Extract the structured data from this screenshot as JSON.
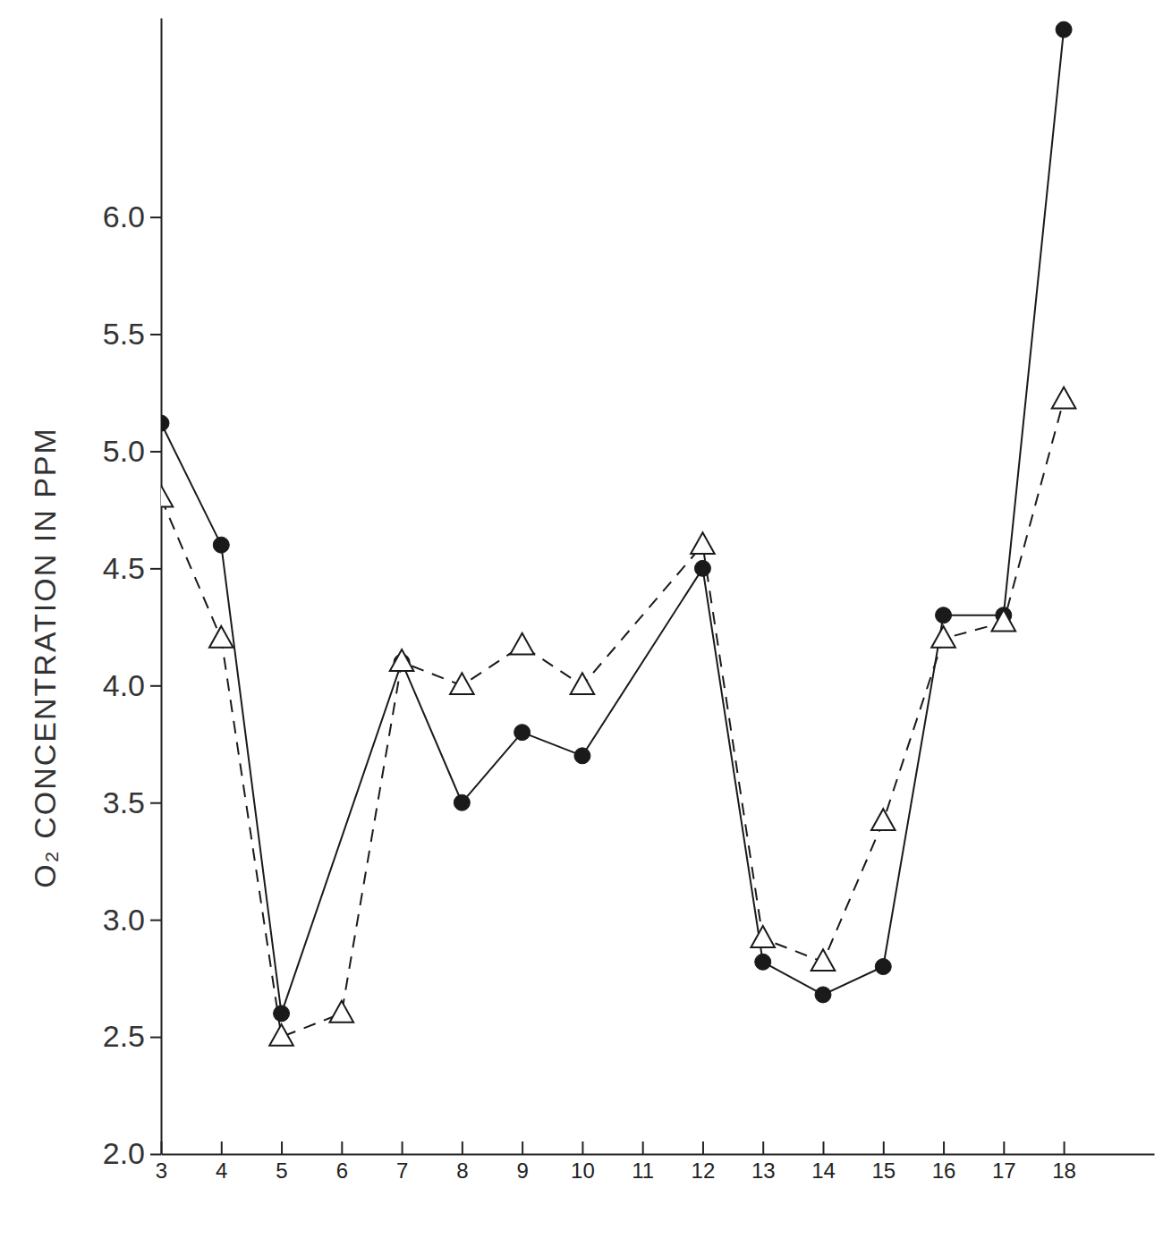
{
  "chart_data": {
    "type": "line",
    "y_label": "O₂ CONCENTRATION IN PPM",
    "xlim": [
      3,
      19.5
    ],
    "xticks": [
      3,
      4,
      5,
      6,
      7,
      8,
      9,
      10,
      11,
      12,
      13,
      14,
      15,
      16,
      17,
      18
    ],
    "ylim": [
      2,
      6.85
    ],
    "yticks": [
      {
        "value": 2,
        "label": "2.0"
      },
      {
        "value": 2.5,
        "label": "2.5"
      },
      {
        "value": 3,
        "label": "3.0"
      },
      {
        "value": 3.5,
        "label": "3.5"
      },
      {
        "value": 4,
        "label": "4.0"
      },
      {
        "value": 4.5,
        "label": "4.5"
      },
      {
        "value": 5,
        "label": "5.0"
      },
      {
        "value": 5.5,
        "label": "5.5"
      },
      {
        "value": 6,
        "label": "6.0"
      }
    ],
    "grid": false,
    "series": [
      {
        "color": "#1a1a1a",
        "marker": "circle",
        "line_style": "solid",
        "x": [
          3,
          4,
          5,
          7,
          8,
          9,
          10,
          12,
          13,
          14,
          15,
          16,
          17,
          18
        ],
        "values": [
          5.12,
          4.6,
          2.6,
          4.1,
          3.5,
          3.8,
          3.7,
          4.5,
          2.82,
          2.68,
          2.8,
          4.3,
          4.3,
          6.8
        ]
      },
      {
        "color": "#1a1a1a",
        "marker": "triangle",
        "line_style": "dashed",
        "x": [
          3,
          4,
          5,
          6,
          7,
          8,
          9,
          10,
          12,
          13,
          14,
          15,
          16,
          17,
          18
        ],
        "values": [
          4.8,
          4.2,
          2.5,
          2.6,
          4.1,
          4.0,
          4.17,
          4.0,
          4.6,
          2.92,
          2.82,
          3.42,
          4.2,
          4.27,
          5.22
        ]
      }
    ]
  }
}
